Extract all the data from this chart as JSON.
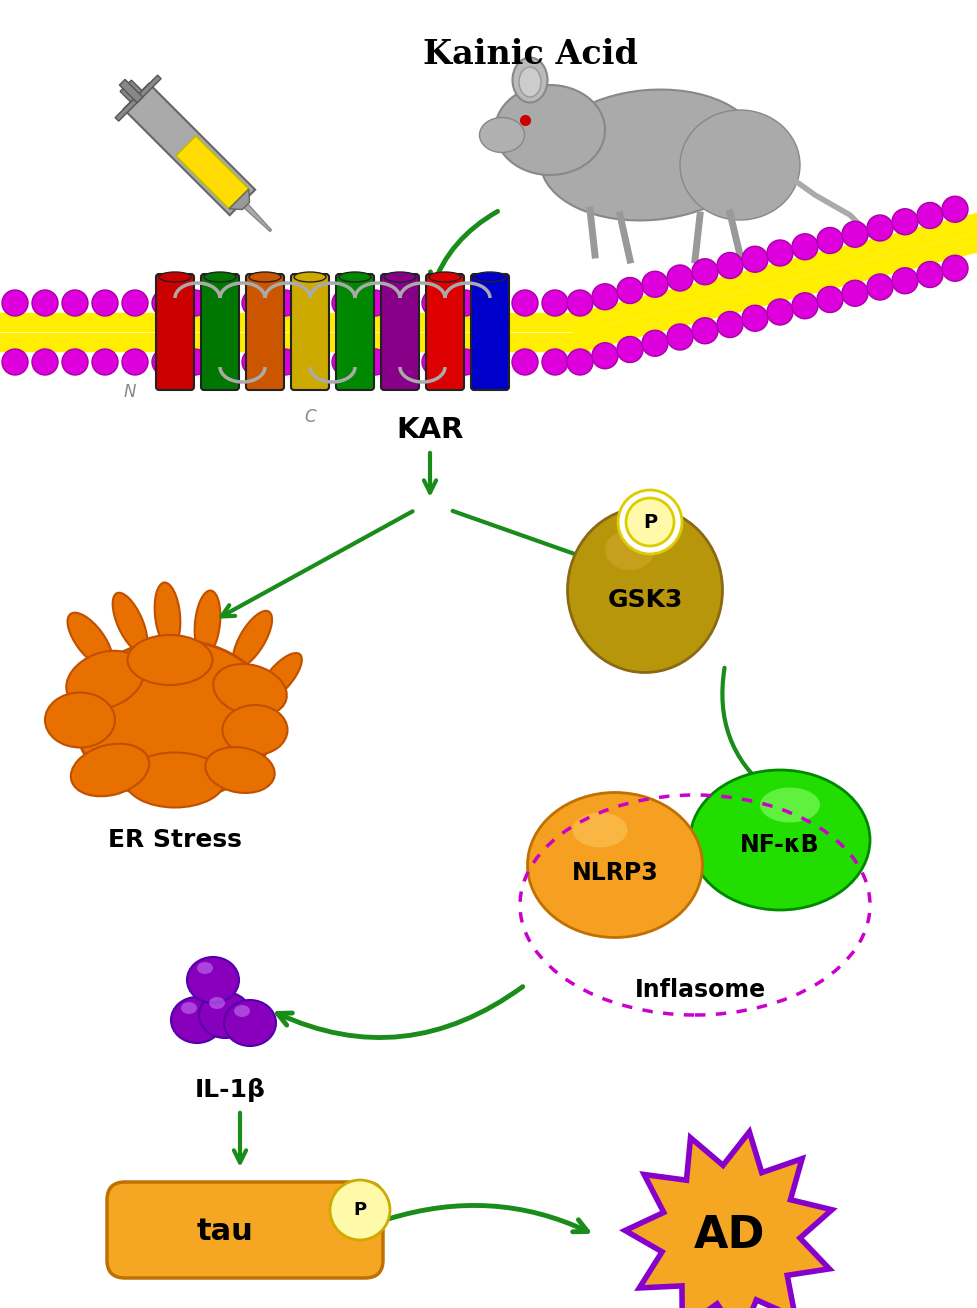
{
  "bg_color": "#ffffff",
  "kainic_acid_label": "Kainic Acid",
  "kar_label": "KAR",
  "er_stress_label": "ER Stress",
  "gsk3_label": "GSK3",
  "nfkb_label": "NF-κB",
  "nlrp3_label": "NLRP3",
  "inflasome_label": "Inflasome",
  "il1b_label": "IL-1β",
  "tau_label": "tau",
  "p_label": "P",
  "ad_label": "AD",
  "n_label": "N",
  "c_label": "C",
  "arrow_color": "#1a8c1a",
  "membrane_magenta": "#dd00dd",
  "membrane_yellow": "#ffee00",
  "nlrp3_color": "#f5a020",
  "nfkb_color": "#22dd00",
  "gsk3_color": "#b8960b",
  "tau_color": "#f5a623",
  "ad_fill": "#f5a623",
  "ad_border": "#8800cc",
  "il1b_color": "#8800cc",
  "p_circle_color": "#fffaaa",
  "inflasome_ring_color": "#cc00cc",
  "er_color": "#E87000",
  "er_dark": "#c05000",
  "cyl_colors": [
    "#cc0000",
    "#007700",
    "#cc5500",
    "#ccaa00",
    "#008800",
    "#880088",
    "#dd0000",
    "#0000cc"
  ]
}
